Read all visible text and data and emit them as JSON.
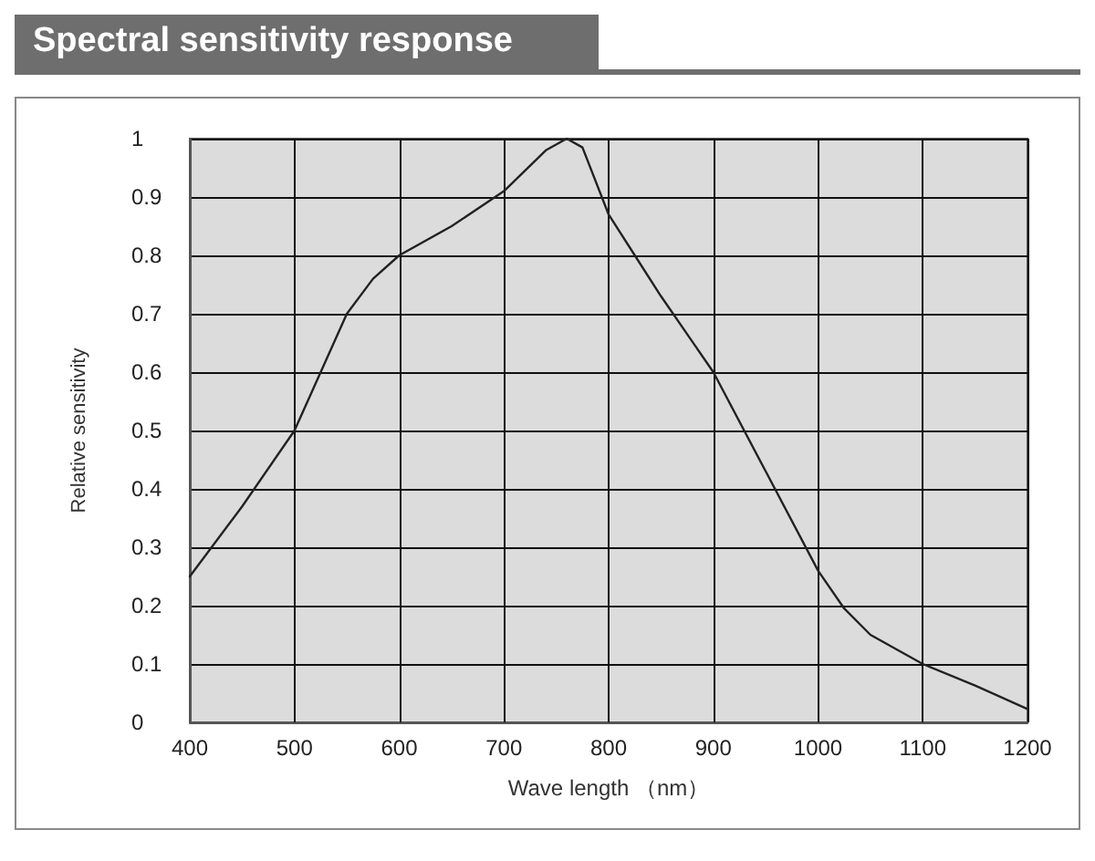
{
  "chart_data": {
    "type": "line",
    "title": "Spectral sensitivity response",
    "xlabel": "Wave length （nm）",
    "ylabel": "Relative sensitivity",
    "x": [
      400,
      450,
      500,
      525,
      550,
      575,
      600,
      650,
      700,
      740,
      760,
      775,
      800,
      825,
      850,
      900,
      950,
      1000,
      1025,
      1050,
      1100,
      1150,
      1200
    ],
    "series": [
      {
        "color": "#222222",
        "values": [
          0.25,
          0.37,
          0.5,
          0.6,
          0.7,
          0.76,
          0.8,
          0.85,
          0.91,
          0.98,
          1.0,
          0.985,
          0.87,
          0.8,
          0.73,
          0.6,
          0.43,
          0.26,
          0.195,
          0.15,
          0.1,
          0.063,
          0.023
        ]
      }
    ],
    "xlim": [
      400,
      1200
    ],
    "xticks": [
      400,
      500,
      600,
      700,
      800,
      900,
      1000,
      1100,
      1200
    ],
    "ylim": [
      0,
      1
    ],
    "yticks": [
      0,
      0.1,
      0.2,
      0.3,
      0.4,
      0.5,
      0.6,
      0.7,
      0.8,
      0.9,
      1
    ],
    "grid": true,
    "marker": "none",
    "line_style": "solid"
  }
}
